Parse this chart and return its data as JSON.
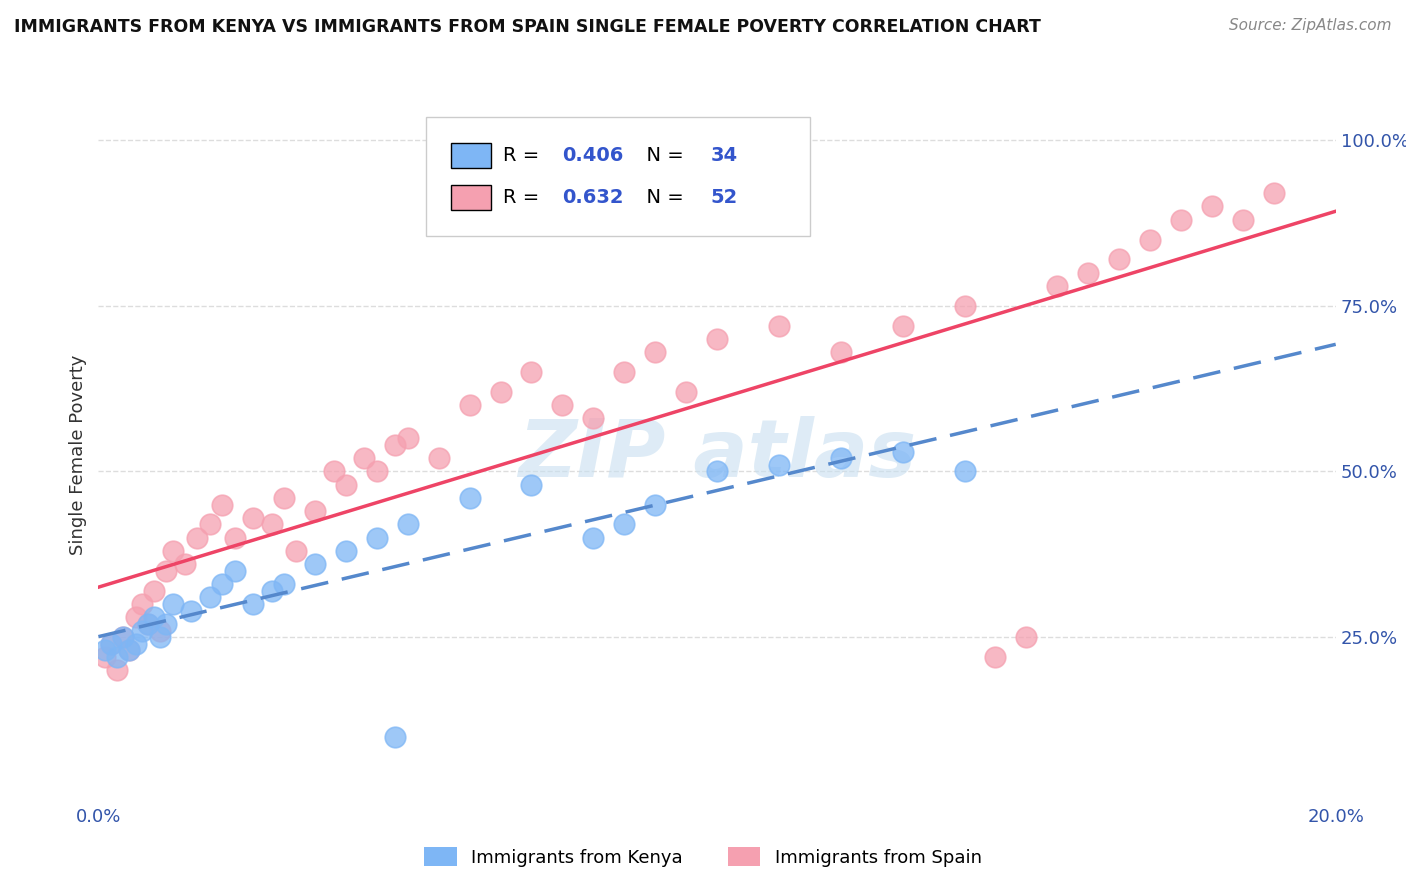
{
  "title": "IMMIGRANTS FROM KENYA VS IMMIGRANTS FROM SPAIN SINGLE FEMALE POVERTY CORRELATION CHART",
  "source": "Source: ZipAtlas.com",
  "ylabel": "Single Female Poverty",
  "legend_labels": [
    "Immigrants from Kenya",
    "Immigrants from Spain"
  ],
  "kenya_R": 0.406,
  "kenya_N": 34,
  "spain_R": 0.632,
  "spain_N": 52,
  "xlim": [
    0.0,
    0.2
  ],
  "ylim": [
    0.0,
    1.05
  ],
  "kenya_color": "#7EB6F5",
  "spain_color": "#F5A0B0",
  "kenya_line_color": "#5588CC",
  "spain_line_color": "#EE4466",
  "watermark_color": "#C8DFF0",
  "grid_color": "#DDDDDD",
  "title_color": "#111111",
  "source_color": "#888888",
  "axis_label_color": "#3355AA",
  "kenya_x": [
    0.001,
    0.002,
    0.003,
    0.004,
    0.005,
    0.006,
    0.007,
    0.008,
    0.009,
    0.01,
    0.011,
    0.012,
    0.015,
    0.018,
    0.02,
    0.022,
    0.025,
    0.028,
    0.03,
    0.035,
    0.04,
    0.045,
    0.05,
    0.06,
    0.07,
    0.08,
    0.085,
    0.09,
    0.1,
    0.11,
    0.12,
    0.13,
    0.14,
    0.048
  ],
  "kenya_y": [
    0.23,
    0.24,
    0.22,
    0.25,
    0.23,
    0.24,
    0.26,
    0.27,
    0.28,
    0.25,
    0.27,
    0.3,
    0.29,
    0.31,
    0.33,
    0.35,
    0.3,
    0.32,
    0.33,
    0.36,
    0.38,
    0.4,
    0.42,
    0.46,
    0.48,
    0.4,
    0.42,
    0.45,
    0.5,
    0.51,
    0.52,
    0.53,
    0.5,
    0.1
  ],
  "spain_x": [
    0.001,
    0.002,
    0.003,
    0.004,
    0.005,
    0.006,
    0.007,
    0.008,
    0.009,
    0.01,
    0.011,
    0.012,
    0.014,
    0.016,
    0.018,
    0.02,
    0.022,
    0.025,
    0.028,
    0.03,
    0.032,
    0.035,
    0.038,
    0.04,
    0.043,
    0.045,
    0.048,
    0.05,
    0.055,
    0.06,
    0.065,
    0.07,
    0.075,
    0.08,
    0.085,
    0.09,
    0.095,
    0.1,
    0.11,
    0.12,
    0.13,
    0.14,
    0.145,
    0.15,
    0.155,
    0.16,
    0.165,
    0.17,
    0.175,
    0.18,
    0.185,
    0.19
  ],
  "spain_y": [
    0.22,
    0.24,
    0.2,
    0.25,
    0.23,
    0.28,
    0.3,
    0.27,
    0.32,
    0.26,
    0.35,
    0.38,
    0.36,
    0.4,
    0.42,
    0.45,
    0.4,
    0.43,
    0.42,
    0.46,
    0.38,
    0.44,
    0.5,
    0.48,
    0.52,
    0.5,
    0.54,
    0.55,
    0.52,
    0.6,
    0.62,
    0.65,
    0.6,
    0.58,
    0.65,
    0.68,
    0.62,
    0.7,
    0.72,
    0.68,
    0.72,
    0.75,
    0.22,
    0.25,
    0.78,
    0.8,
    0.82,
    0.85,
    0.88,
    0.9,
    0.88,
    0.92
  ]
}
